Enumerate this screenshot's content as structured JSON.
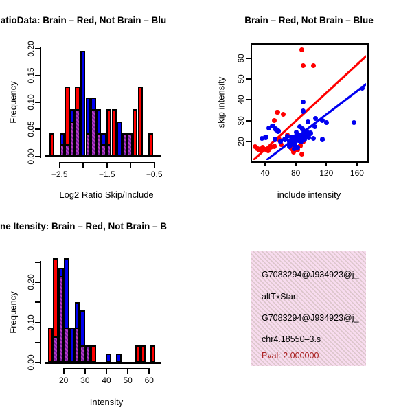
{
  "colors": {
    "red": "#ff0000",
    "blue": "#0000f0",
    "purple_base": "#7a1fa0",
    "purple_stripe": "#b83cc8",
    "bar_border": "#000000",
    "pval_red": "#aa2222",
    "pink_bg": "#f8dcef",
    "pink_stripe": "#dcc6cb"
  },
  "chart_data": [
    {
      "type": "bar",
      "title": "RatioData: Brain – Red, Not Brain – Blu",
      "xlabel": "Log2 Ratio Skip/Include",
      "ylabel": "Frequency",
      "xlim": [
        -2.81,
        -0.38
      ],
      "ylim": [
        0,
        0.205
      ],
      "bin_width": 0.11,
      "legend_note": "red = Brain, blue = Not Brain, purple hatch = overlap",
      "x_ticks": [
        {
          "v": -2.5,
          "label": "−2.5"
        },
        {
          "v": -2.0,
          "label": ""
        },
        {
          "v": -1.5,
          "label": "−1.5"
        },
        {
          "v": -1.0,
          "label": ""
        },
        {
          "v": -0.5,
          "label": "−0.5"
        }
      ],
      "y_ticks": [
        {
          "v": 0.0,
          "label": "0.00"
        },
        {
          "v": 0.05,
          "label": "0.05"
        },
        {
          "v": 0.1,
          "label": "0.10"
        },
        {
          "v": 0.15,
          "label": "0.15"
        },
        {
          "v": 0.2,
          "label": "0.20"
        }
      ],
      "bars": [
        {
          "x": -2.72,
          "color": "red",
          "h": 0.043
        },
        {
          "x": -2.5,
          "color": "blue",
          "h": 0.043,
          "overlap": 0.022
        },
        {
          "x": -2.39,
          "color": "red",
          "h": 0.13,
          "overlap": 0.022
        },
        {
          "x": -2.28,
          "color": "blue",
          "h": 0.087,
          "overlap": 0.065
        },
        {
          "x": -2.17,
          "color": "red",
          "h": 0.13,
          "overlap": 0.087
        },
        {
          "x": -2.06,
          "color": "blue",
          "h": 0.196
        },
        {
          "x": -1.95,
          "color": "blue",
          "h": 0.109,
          "overlap": 0.043
        },
        {
          "x": -1.84,
          "color": "blue",
          "h": 0.109,
          "overlap": 0.087
        },
        {
          "x": -1.73,
          "color": "blue",
          "h": 0.087,
          "overlap": 0.043
        },
        {
          "x": -1.62,
          "color": "blue",
          "h": 0.043,
          "overlap": 0.022
        },
        {
          "x": -1.51,
          "color": "red",
          "h": 0.087,
          "overlap": 0.022
        },
        {
          "x": -1.4,
          "color": "red",
          "h": 0.087
        },
        {
          "x": -1.29,
          "color": "blue",
          "h": 0.065
        },
        {
          "x": -1.18,
          "color": "purple",
          "h": 0.043
        },
        {
          "x": -1.07,
          "color": "purple",
          "h": 0.043
        },
        {
          "x": -0.96,
          "color": "red",
          "h": 0.087
        },
        {
          "x": -0.85,
          "color": "red",
          "h": 0.13
        },
        {
          "x": -0.63,
          "color": "red",
          "h": 0.043
        }
      ]
    },
    {
      "type": "scatter",
      "title": "Brain – Red, Not Brain – Blue",
      "xlabel": "include intensity",
      "ylabel": "skip intensity",
      "xlim": [
        22.7,
        172
      ],
      "ylim": [
        11,
        66.4
      ],
      "x_ticks": [
        {
          "v": 40,
          "label": "40"
        },
        {
          "v": 80,
          "label": "80"
        },
        {
          "v": 120,
          "label": "120"
        },
        {
          "v": 160,
          "label": "160"
        }
      ],
      "y_ticks": [
        {
          "v": 20,
          "label": "20"
        },
        {
          "v": 30,
          "label": "30"
        },
        {
          "v": 40,
          "label": "40"
        },
        {
          "v": 50,
          "label": "50"
        },
        {
          "v": 60,
          "label": "60"
        }
      ],
      "series": [
        {
          "name": "brain-red",
          "color": "red",
          "points": [
            [
              88,
              64
            ],
            [
              90,
              56.5
            ],
            [
              103,
              56.5
            ],
            [
              56,
              34
            ],
            [
              64,
              33
            ],
            [
              52,
              30
            ],
            [
              69,
              23
            ],
            [
              58,
              21
            ],
            [
              27,
              17.5
            ],
            [
              30,
              16.5
            ],
            [
              33,
              16
            ],
            [
              37,
              17
            ],
            [
              41,
              16.3
            ],
            [
              44,
              15.6
            ],
            [
              47,
              17.4
            ],
            [
              52,
              17.7
            ],
            [
              61,
              18.5
            ],
            [
              75,
              16.5
            ],
            [
              77,
              15
            ],
            [
              82,
              16
            ],
            [
              86,
              18
            ],
            [
              88,
              14
            ],
            [
              90,
              20
            ]
          ]
        },
        {
          "name": "notbrain-blue",
          "color": "blue",
          "points": [
            [
              90,
              39
            ],
            [
              90,
              34.5
            ],
            [
              96,
              29.5
            ],
            [
              106,
              31
            ],
            [
              115,
              30
            ],
            [
              120,
              29
            ],
            [
              156,
              29
            ],
            [
              167,
              45.5
            ],
            [
              105,
              27
            ],
            [
              94,
              25
            ],
            [
              85,
              27
            ],
            [
              81,
              24.5
            ],
            [
              88,
              23
            ],
            [
              97,
              22
            ],
            [
              103,
              21.5
            ],
            [
              115,
              21
            ],
            [
              50,
              27.5
            ],
            [
              45,
              26.5
            ],
            [
              54,
              26
            ],
            [
              57,
              25
            ],
            [
              41,
              22
            ],
            [
              36,
              21.5
            ],
            [
              53,
              21
            ],
            [
              60,
              20
            ],
            [
              66,
              21
            ],
            [
              72,
              20
            ],
            [
              76,
              19
            ],
            [
              72,
              17.5
            ],
            [
              79,
              20
            ],
            [
              84,
              20.5
            ],
            [
              82,
              21.5
            ],
            [
              75,
              22
            ],
            [
              69,
              22.5
            ],
            [
              78,
              16.5
            ],
            [
              82,
              17
            ],
            [
              87,
              20
            ],
            [
              91,
              21
            ],
            [
              79,
              18
            ],
            [
              74,
              18.5
            ],
            [
              84,
              23
            ],
            [
              89,
              26
            ],
            [
              93,
              23
            ],
            [
              99,
              24
            ],
            [
              86,
              21
            ],
            [
              80,
              22.5
            ]
          ]
        }
      ],
      "fit_lines": [
        {
          "color": "red",
          "x1": 24.7,
          "y1": 11,
          "x2": 172,
          "y2": 61
        },
        {
          "color": "blue",
          "x1": 41.8,
          "y1": 11,
          "x2": 172,
          "y2": 47.5
        }
      ]
    },
    {
      "type": "bar",
      "title": "ne Itensity: Brain – Red, Not Brain – B",
      "xlabel": "Intensity",
      "ylabel": "Frequency",
      "xlim": [
        12,
        65
      ],
      "ylim": [
        0,
        0.265
      ],
      "bin_width": 2.5,
      "legend_note": "red = Brain, blue = Not Brain, purple hatch = overlap",
      "x_ticks": [
        {
          "v": 20,
          "label": "20"
        },
        {
          "v": 30,
          "label": "30"
        },
        {
          "v": 40,
          "label": "40"
        },
        {
          "v": 50,
          "label": "50"
        },
        {
          "v": 60,
          "label": "60"
        }
      ],
      "y_ticks": [
        {
          "v": 0.0,
          "label": "0.00"
        },
        {
          "v": 0.05,
          "label": ""
        },
        {
          "v": 0.1,
          "label": "0.10"
        },
        {
          "v": 0.15,
          "label": ""
        },
        {
          "v": 0.2,
          "label": "0.20"
        },
        {
          "v": 0.25,
          "label": ""
        }
      ],
      "bars": [
        {
          "x": 12.6,
          "color": "red",
          "h": 0.087
        },
        {
          "x": 15.1,
          "color": "red",
          "h": 0.26,
          "overlap": 0.065
        },
        {
          "x": 17.6,
          "color": "blue",
          "h": 0.235,
          "overlap": 0.215
        },
        {
          "x": 20.1,
          "color": "blue",
          "h": 0.26,
          "overlap": 0.087
        },
        {
          "x": 22.6,
          "color": "blue",
          "h": 0.087
        },
        {
          "x": 25.1,
          "color": "blue",
          "h": 0.15,
          "overlap": 0.087
        },
        {
          "x": 27.6,
          "color": "blue",
          "h": 0.13,
          "overlap": 0.043
        },
        {
          "x": 30.1,
          "color": "purple",
          "h": 0.043
        },
        {
          "x": 32.6,
          "color": "red",
          "h": 0.043
        },
        {
          "x": 39.6,
          "color": "blue",
          "h": 0.022
        },
        {
          "x": 44.4,
          "color": "blue",
          "h": 0.022
        },
        {
          "x": 53.4,
          "color": "red",
          "h": 0.043
        },
        {
          "x": 55.9,
          "color": "red",
          "h": 0.043
        },
        {
          "x": 60.4,
          "color": "red",
          "h": 0.043
        }
      ]
    }
  ],
  "info_panel": {
    "lines": [
      "G7083294@J934923@j_",
      "altTxStart",
      "G7083294@J934923@j_",
      "chr4.18550–3.s"
    ],
    "pval_line": "Pval: 2.000000"
  }
}
